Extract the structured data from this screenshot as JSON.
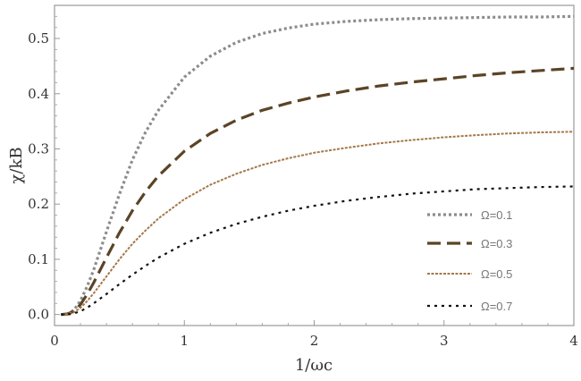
{
  "chart_data": {
    "type": "line",
    "xlabel": "1/ωc",
    "ylabel": "χ/kB",
    "xlim": [
      0,
      4
    ],
    "ylim": [
      -0.02,
      0.56
    ],
    "x_ticks": [
      0,
      1,
      2,
      3,
      4
    ],
    "x_tick_labels": [
      "0",
      "1",
      "2",
      "3",
      "4"
    ],
    "y_ticks": [
      0.0,
      0.1,
      0.2,
      0.3,
      0.4,
      0.5
    ],
    "y_tick_labels": [
      "0.0",
      "0.1",
      "0.2",
      "0.3",
      "0.4",
      "0.5"
    ],
    "grid": false,
    "legend_position": "bottom-right",
    "x": [
      0.05,
      0.1,
      0.15,
      0.2,
      0.25,
      0.3,
      0.4,
      0.5,
      0.6,
      0.7,
      0.8,
      1.0,
      1.2,
      1.4,
      1.6,
      1.8,
      2.0,
      2.25,
      2.5,
      2.75,
      3.0,
      3.25,
      3.5,
      3.75,
      4.0
    ],
    "series": [
      {
        "name": "Ω=0.1",
        "color": "#8c8c8c",
        "dash": "dotted",
        "values": [
          0.0,
          0.001,
          0.008,
          0.025,
          0.05,
          0.08,
          0.15,
          0.218,
          0.28,
          0.33,
          0.37,
          0.43,
          0.468,
          0.493,
          0.509,
          0.519,
          0.526,
          0.531,
          0.534,
          0.536,
          0.537,
          0.538,
          0.539,
          0.539,
          0.54
        ]
      },
      {
        "name": "Ω=0.3",
        "color": "#5b4426",
        "dash": "long-dash",
        "values": [
          0.0,
          0.001,
          0.006,
          0.018,
          0.036,
          0.057,
          0.103,
          0.148,
          0.188,
          0.222,
          0.251,
          0.296,
          0.328,
          0.352,
          0.37,
          0.383,
          0.394,
          0.405,
          0.414,
          0.421,
          0.427,
          0.433,
          0.438,
          0.442,
          0.446
        ]
      },
      {
        "name": "Ω=0.5",
        "color": "#a4784a",
        "dash": "fine-dash",
        "values": [
          0.0,
          0.001,
          0.004,
          0.012,
          0.024,
          0.038,
          0.069,
          0.1,
          0.128,
          0.152,
          0.174,
          0.209,
          0.235,
          0.255,
          0.271,
          0.283,
          0.293,
          0.302,
          0.31,
          0.316,
          0.321,
          0.325,
          0.328,
          0.33,
          0.331
        ]
      },
      {
        "name": "Ω=0.7",
        "color": "#111111",
        "dash": "short-dash",
        "values": [
          0.0,
          0.0,
          0.002,
          0.006,
          0.012,
          0.02,
          0.037,
          0.055,
          0.072,
          0.088,
          0.103,
          0.128,
          0.148,
          0.164,
          0.177,
          0.188,
          0.197,
          0.206,
          0.213,
          0.219,
          0.223,
          0.227,
          0.229,
          0.231,
          0.232
        ]
      }
    ]
  }
}
